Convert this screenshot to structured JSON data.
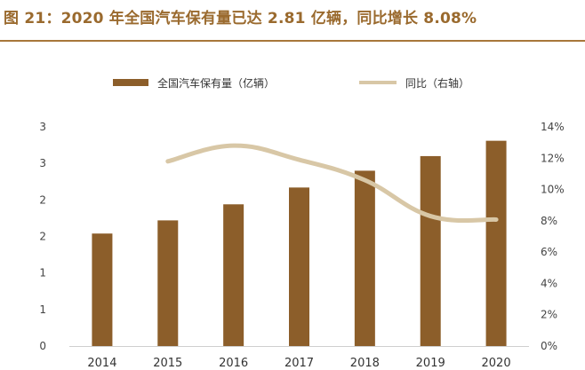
{
  "title": "图 21：2020 年全国汽车保有量已达 2.81 亿辆，同比增长 8.08%",
  "colors": {
    "title": "#9a6a2e",
    "bar": "#8c5e2a",
    "line": "#d8c7a6"
  },
  "chart_data": {
    "type": "bar",
    "categories": [
      "2014",
      "2015",
      "2016",
      "2017",
      "2018",
      "2019",
      "2020"
    ],
    "series": [
      {
        "name": "全国汽车保有量（亿辆）",
        "type": "bar",
        "axis": "left",
        "values": [
          1.54,
          1.72,
          1.94,
          2.17,
          2.4,
          2.6,
          2.81
        ]
      },
      {
        "name": "同比（右轴）",
        "type": "line",
        "axis": "right",
        "values": [
          null,
          11.8,
          12.8,
          11.9,
          10.6,
          8.3,
          8.08
        ]
      }
    ],
    "left_axis": {
      "ylim": [
        0,
        3
      ],
      "ticks": [
        0,
        0.5,
        1,
        1.5,
        2,
        2.5,
        3
      ],
      "tick_labels": [
        "0",
        "1",
        "1",
        "2",
        "2",
        "3",
        "3"
      ]
    },
    "right_axis": {
      "ylim": [
        0,
        14
      ],
      "ticks": [
        0,
        2,
        4,
        6,
        8,
        10,
        12,
        14
      ],
      "tick_labels": [
        "0%",
        "2%",
        "4%",
        "6%",
        "8%",
        "10%",
        "12%",
        "14%"
      ]
    },
    "legend_position": "top-center",
    "grid": false
  }
}
